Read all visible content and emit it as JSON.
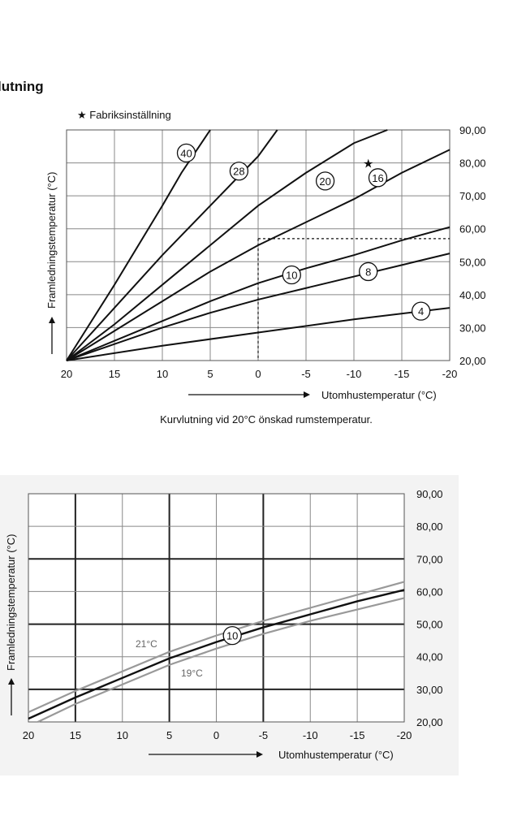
{
  "heading": "lutning",
  "chart_data": [
    {
      "type": "line",
      "title": "",
      "legend_note": "★ Fabriksinställning",
      "caption": "Kurvlutning vid 20°C önskad rumstemperatur.",
      "xlabel": "Utomhustemperatur (°C)",
      "ylabel": "Framledningstemperatur (°C)",
      "xlim": [
        20,
        -20
      ],
      "ylim": [
        20,
        90
      ],
      "x_ticks": [
        "20",
        "15",
        "10",
        "5",
        "0",
        "-5",
        "-10",
        "-15",
        "-20"
      ],
      "y_ticks": [
        "20,00",
        "30,00",
        "40,00",
        "50,00",
        "60,00",
        "70,00",
        "80,00",
        "90,00"
      ],
      "series": [
        {
          "name": "40",
          "x": [
            20,
            15,
            10,
            8,
            5
          ],
          "y": [
            20,
            43,
            67,
            77,
            90
          ]
        },
        {
          "name": "28",
          "x": [
            20,
            15,
            10,
            5,
            0,
            -2
          ],
          "y": [
            20,
            36,
            52,
            67,
            82,
            90
          ]
        },
        {
          "name": "20",
          "x": [
            20,
            15,
            10,
            5,
            0,
            -5,
            -10,
            -13.5
          ],
          "y": [
            20,
            31,
            43,
            55,
            67,
            77,
            86,
            90
          ]
        },
        {
          "name": "16",
          "x": [
            20,
            15,
            10,
            5,
            0,
            -5,
            -10,
            -15,
            -20
          ],
          "y": [
            20,
            29,
            38,
            47,
            55,
            62,
            69,
            77,
            84
          ]
        },
        {
          "name": "10",
          "x": [
            20,
            15,
            10,
            5,
            0,
            -5,
            -10,
            -15,
            -20
          ],
          "y": [
            20,
            26,
            32,
            38,
            43.5,
            48,
            52,
            56.5,
            60.5
          ]
        },
        {
          "name": "8",
          "x": [
            20,
            15,
            10,
            5,
            0,
            -5,
            -10,
            -15,
            -20
          ],
          "y": [
            20,
            25,
            30,
            34.5,
            38.5,
            42,
            45.5,
            49,
            52.5
          ]
        },
        {
          "name": "4",
          "x": [
            20,
            10,
            0,
            -10,
            -20
          ],
          "y": [
            20,
            24.5,
            28.5,
            32.5,
            36
          ]
        }
      ],
      "factory_setting_marker": {
        "series": "16",
        "x": -11.5,
        "y": 79
      },
      "reference_line": {
        "x": 0,
        "y": 57
      }
    },
    {
      "type": "line",
      "title": "",
      "xlabel": "Utomhustemperatur (°C)",
      "ylabel": "Framledningstemperatur (°C)",
      "xlim": [
        20,
        -20
      ],
      "ylim": [
        20,
        90
      ],
      "x_ticks": [
        "20",
        "15",
        "10",
        "5",
        "0",
        "-5",
        "-10",
        "-15",
        "-20"
      ],
      "y_ticks": [
        "20,00",
        "30,00",
        "40,00",
        "50,00",
        "60,00",
        "70,00",
        "80,00",
        "90,00"
      ],
      "series": [
        {
          "name": "10",
          "label": "10",
          "x": [
            20,
            15,
            10,
            5,
            0,
            -5,
            -10,
            -15,
            -20
          ],
          "y": [
            21,
            27.5,
            33.5,
            39.5,
            44.5,
            49,
            53,
            57,
            60.5
          ]
        },
        {
          "name": "21°C",
          "label": "21°C",
          "x": [
            20,
            15,
            10,
            5,
            0,
            -5,
            -10,
            -15,
            -20
          ],
          "y": [
            23,
            29.5,
            35.5,
            41.5,
            46.5,
            51,
            55,
            59,
            63
          ]
        },
        {
          "name": "19°C",
          "label": "19°C",
          "x": [
            19,
            15,
            10,
            5,
            0,
            -5,
            -10,
            -15,
            -20
          ],
          "y": [
            20,
            25.5,
            31.5,
            37.5,
            42.5,
            47,
            51,
            54.5,
            58
          ]
        }
      ]
    }
  ],
  "colors": {
    "main": "#111111",
    "grid": "#888888",
    "offset": "#999999",
    "bg2": "#f3f3f3"
  }
}
